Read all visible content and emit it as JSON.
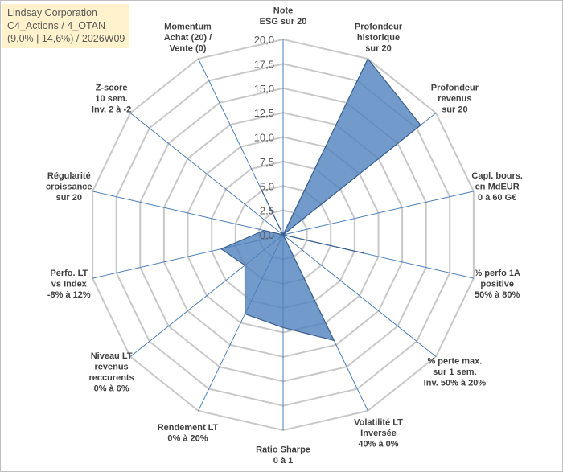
{
  "title_box": {
    "line1": "Lindsay Corporation",
    "line2": "C4_Actions / 4_OTAN",
    "line3": "(9,0% | 14,6%) / 2026W09"
  },
  "colors": {
    "fill": "#4f81bd",
    "stroke": "#3a5f8f",
    "grid": "#c8c8c8",
    "spoke": "#4a7ebb",
    "title_bg": "#fff2cc"
  },
  "chart_data": {
    "type": "radar",
    "rmin": 0,
    "rmax": 20,
    "tick_step": 2.5,
    "ticks": [
      "0,0",
      "2,5",
      "5,0",
      "7,5",
      "10,0",
      "12,5",
      "15,0",
      "17,5",
      "20,0"
    ],
    "grid": true,
    "axes": [
      {
        "lines": [
          "Note",
          "ESG sur 20"
        ]
      },
      {
        "lines": [
          "Profondeur",
          "historique",
          "sur 20"
        ]
      },
      {
        "lines": [
          "Profondeur",
          "revenus",
          "sur 20"
        ]
      },
      {
        "lines": [
          "Capl. bours.",
          "en MdEUR",
          "0 à 60 G€"
        ]
      },
      {
        "lines": [
          "% perfo 1A",
          "positive",
          "50% à 80%"
        ]
      },
      {
        "lines": [
          "% perte max.",
          "sur 1 sem.",
          "Inv. 50% à 20%"
        ]
      },
      {
        "lines": [
          "Volatilité LT",
          "Inversée",
          "40% à 0%"
        ]
      },
      {
        "lines": [
          "Ratio Sharpe",
          "0 à 1"
        ]
      },
      {
        "lines": [
          "Rendement LT",
          "0% à 20%"
        ]
      },
      {
        "lines": [
          "Niveau LT",
          "revenus",
          "reccurents",
          "0% à 6%"
        ]
      },
      {
        "lines": [
          "Perfo. LT",
          "vs Index",
          "-8% à 12%"
        ]
      },
      {
        "lines": [
          "Régularité",
          "croissance",
          "sur 20"
        ]
      },
      {
        "lines": [
          "Z-score",
          "10 sem.",
          "Inv. 2 à -2"
        ]
      },
      {
        "lines": [
          "Momentum",
          "Achat (20) /",
          "Vente (0)"
        ]
      }
    ],
    "series": [
      {
        "values": [
          0,
          20,
          18,
          0,
          8.5,
          0,
          12,
          9.5,
          9,
          5,
          6.5,
          2,
          0,
          5
        ]
      }
    ]
  }
}
